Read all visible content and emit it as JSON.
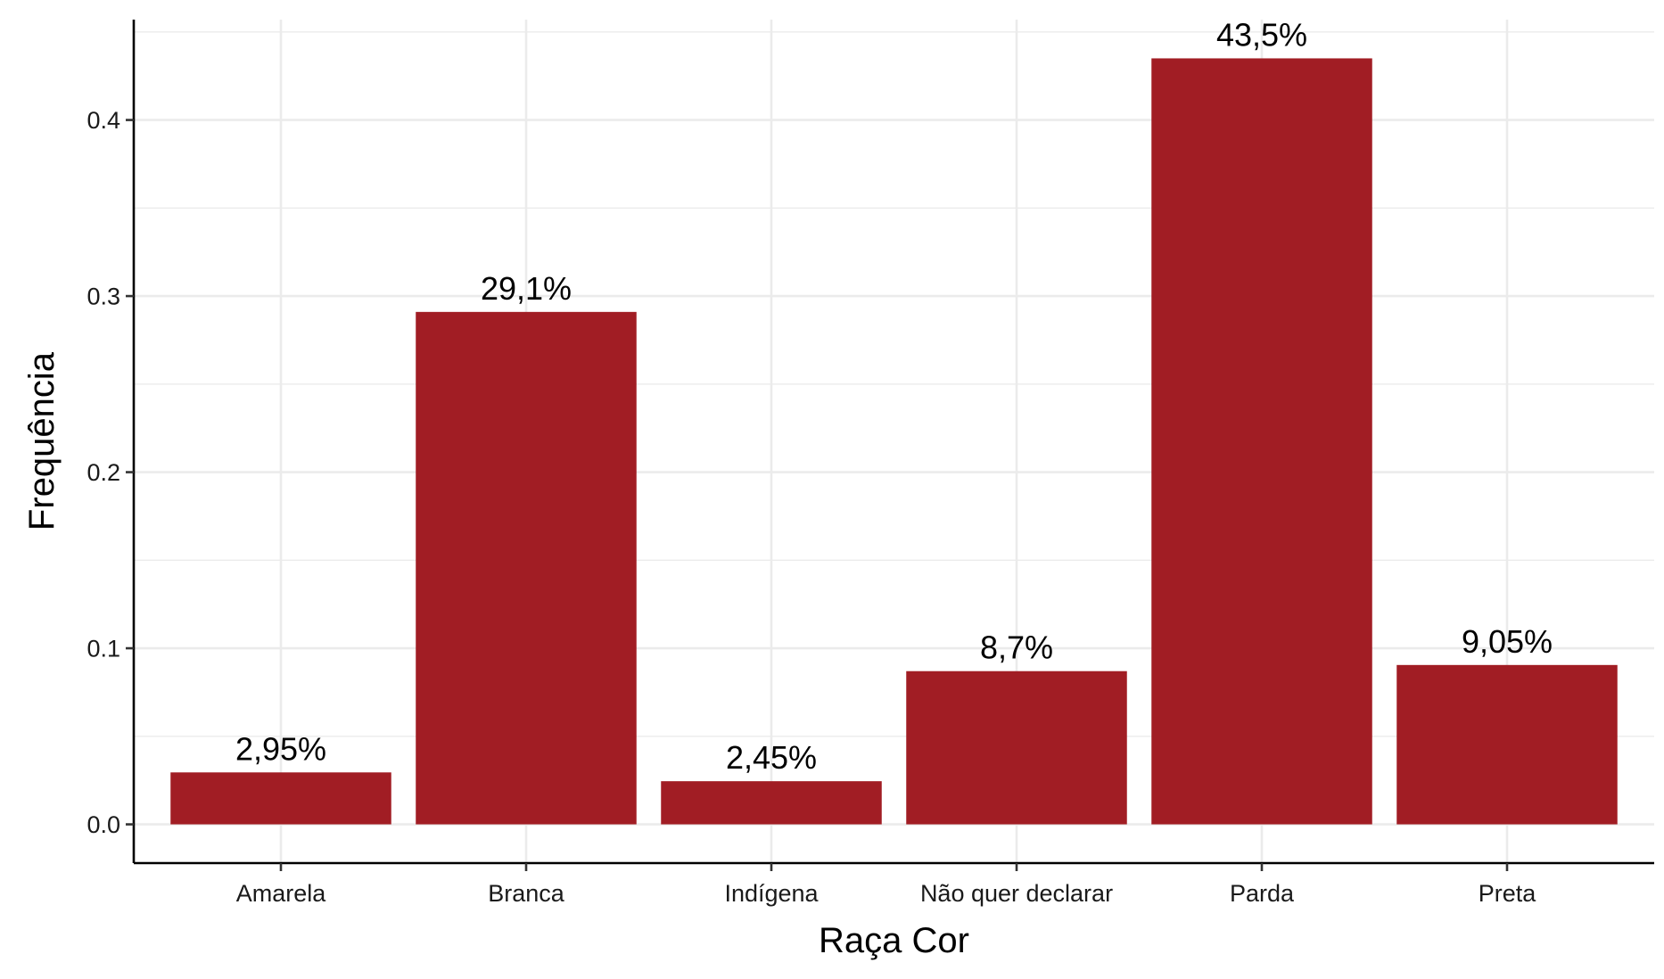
{
  "chart_data": {
    "type": "bar",
    "title": "",
    "xlabel": "Raça Cor",
    "ylabel": "Frequência",
    "categories": [
      "Amarela",
      "Branca",
      "Indígena",
      "Não quer declarar",
      "Parda",
      "Preta"
    ],
    "values": [
      0.0295,
      0.291,
      0.0245,
      0.087,
      0.435,
      0.0905
    ],
    "data_labels": [
      "2,95%",
      "29,1%",
      "2,45%",
      "8,7%",
      "43,5%",
      "9,05%"
    ],
    "yticks": [
      "0.0",
      "0.1",
      "0.2",
      "0.3",
      "0.4"
    ],
    "ytick_values": [
      0,
      0.1,
      0.2,
      0.3,
      0.4
    ],
    "ylim": [
      -0.022,
      0.457
    ],
    "grid": true,
    "legend": "none",
    "colors": {
      "bar": "#A11D24",
      "grid": "#EBEBEB",
      "axis": "#000000"
    }
  }
}
